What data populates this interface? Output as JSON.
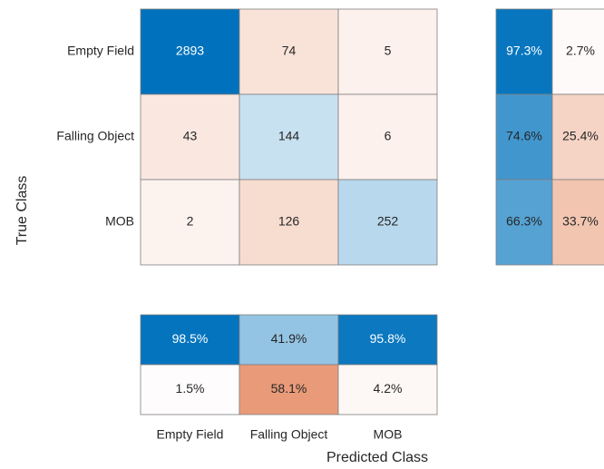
{
  "chart_data": {
    "type": "confusion",
    "classes": [
      "Empty Field",
      "Falling Object",
      "MOB"
    ],
    "matrix": [
      [
        2893,
        74,
        5
      ],
      [
        43,
        144,
        6
      ],
      [
        2,
        126,
        252
      ]
    ],
    "ylabel": "True Class",
    "xlabel": "Predicted Class",
    "row_summary": {
      "values": [
        [
          97.3,
          2.7
        ],
        [
          74.6,
          25.4
        ],
        [
          66.3,
          33.7
        ]
      ],
      "value_labels": [
        [
          "97.3%",
          "2.7%"
        ],
        [
          "74.6%",
          "25.4%"
        ],
        [
          "66.3%",
          "33.7%"
        ]
      ]
    },
    "column_summary": {
      "values": [
        [
          98.5,
          41.9,
          95.8
        ],
        [
          1.5,
          58.1,
          4.2
        ]
      ],
      "value_labels": [
        [
          "98.5%",
          "41.9%",
          "95.8%"
        ],
        [
          "1.5%",
          "58.1%",
          "4.2%"
        ]
      ]
    },
    "correct_color": "#0072BD",
    "incorrect_color": "#D95319"
  }
}
